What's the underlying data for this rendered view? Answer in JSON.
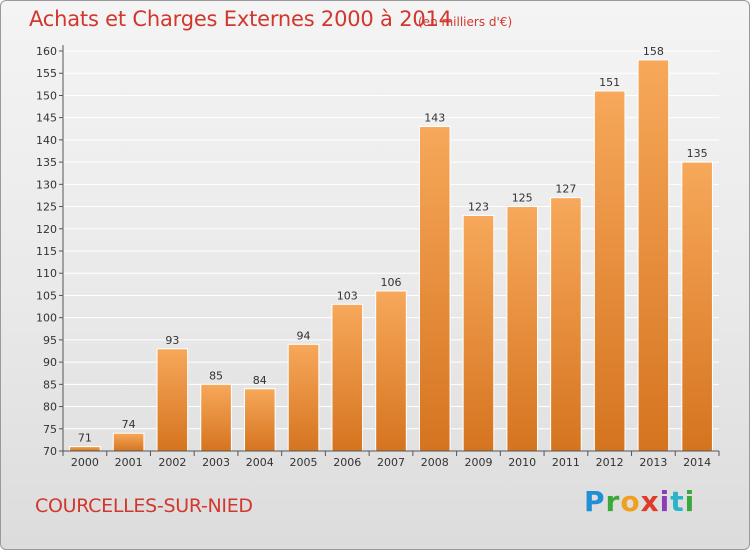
{
  "page": {
    "title": "Achats et Charges Externes 2000 à 2014",
    "unit_label": "(en milliers d'€)",
    "town_name": "COURCELLES-SUR-NIED",
    "brand": "Proxiti"
  },
  "colors": {
    "title": "#d1372e",
    "bar_light": "#f7a85a",
    "bar_dark": "#d5741f",
    "axis": "#555555",
    "grid": "#ffffff"
  },
  "chart_data": {
    "type": "bar",
    "title": "Achats et Charges Externes 2000 à 2014",
    "subtitle": "(en milliers d'€)",
    "xlabel": "",
    "ylabel": "",
    "categories": [
      "2000",
      "2001",
      "2002",
      "2003",
      "2004",
      "2005",
      "2006",
      "2007",
      "2008",
      "2009",
      "2010",
      "2011",
      "2012",
      "2013",
      "2014"
    ],
    "values": [
      71,
      74,
      93,
      85,
      84,
      94,
      103,
      106,
      143,
      123,
      125,
      127,
      151,
      158,
      135
    ],
    "ylim": [
      70,
      160
    ],
    "yticks": [
      70,
      75,
      80,
      85,
      90,
      95,
      100,
      105,
      110,
      115,
      120,
      125,
      130,
      135,
      140,
      145,
      150,
      155,
      160
    ],
    "grid": true,
    "data_labels": true,
    "legend": "none"
  }
}
